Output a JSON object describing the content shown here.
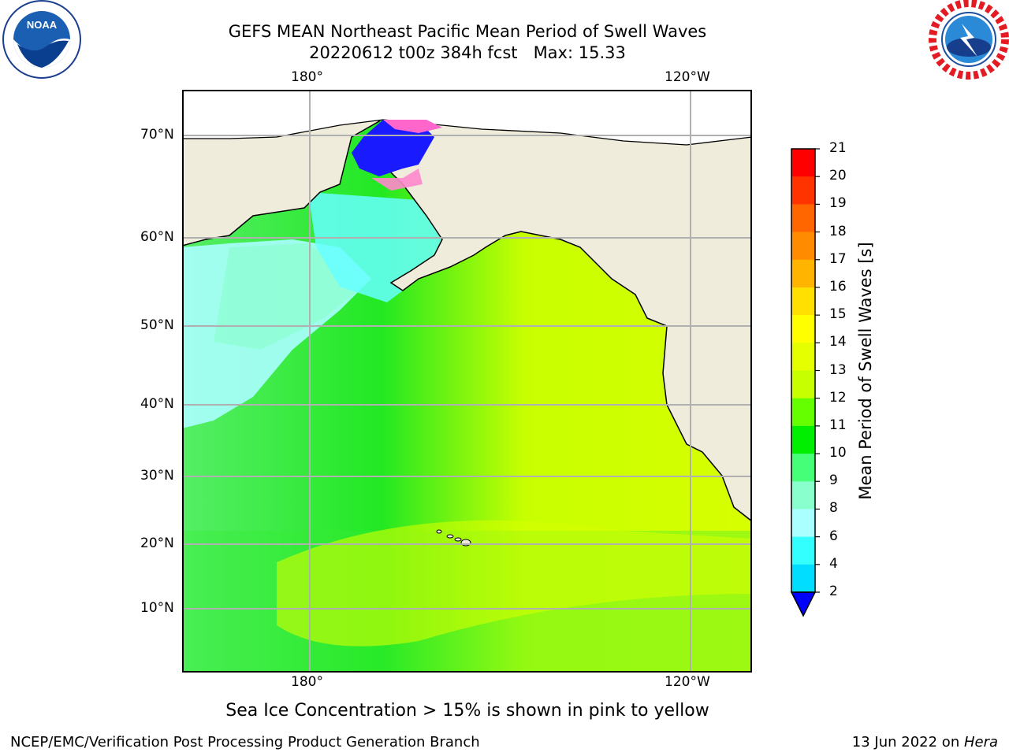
{
  "header": {
    "title_line1": "GEFS MEAN Northeast Pacific Mean Period of Swell Waves",
    "title_line2": "20220612 t00z 384h fcst   Max: 15.33"
  },
  "logos": {
    "left_text": "NOAA",
    "right_text": "NATIONAL WEATHER SERVICE"
  },
  "map": {
    "lon_labels": [
      "180°",
      "120°W"
    ],
    "lat_labels": [
      "70°N",
      "60°N",
      "50°N",
      "40°N",
      "30°N",
      "20°N",
      "10°N"
    ],
    "colors": {
      "land": "#efecdc",
      "grid": "#b0b0b0"
    }
  },
  "colorbar": {
    "label": "Mean Period of Swell Waves [s]",
    "ticks": [
      "21",
      "20",
      "19",
      "18",
      "17",
      "16",
      "15",
      "14",
      "13",
      "12",
      "11",
      "10",
      "9",
      "8",
      "6",
      "4",
      "2"
    ],
    "colors": [
      "#ff0000",
      "#ff3300",
      "#ff6600",
      "#ff8c00",
      "#ffb400",
      "#ffe000",
      "#ffff00",
      "#e6ff00",
      "#c8ff00",
      "#66ff00",
      "#00ee00",
      "#44ff77",
      "#88ffcc",
      "#aaffff",
      "#33ffff",
      "#00ddff",
      "#0077ff",
      "#0000ff"
    ]
  },
  "caption": "Sea Ice Concentration > 15% is shown in pink to yellow",
  "footer": {
    "left": "NCEP/EMC/Verification Post Processing Product Generation Branch",
    "right_prefix": "13 Jun 2022 on ",
    "right_host": "Hera"
  }
}
